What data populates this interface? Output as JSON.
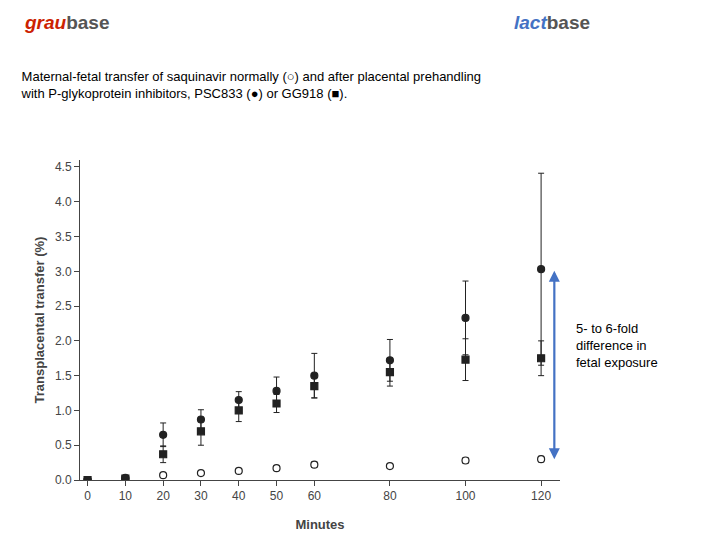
{
  "chart_data": {
    "type": "scatter",
    "title": "Maternal-fetal transfer of saquinavir normally (○) and after placental prehandling\nwith P-glykoprotein inhibitors, PSC833 (●) or GG918 (■).",
    "xlabel": "Minutes",
    "ylabel": "Transplacental transfer (%)",
    "xlim": [
      -2,
      125
    ],
    "ylim": [
      0,
      4.6
    ],
    "xticks": [
      0,
      10,
      20,
      30,
      40,
      50,
      60,
      80,
      100,
      120
    ],
    "yticks": [
      {
        "value": 0.0,
        "label": "0.0"
      },
      0.5,
      {
        "value": 1.0,
        "label": "1.0"
      },
      1.5,
      {
        "value": 2.0,
        "label": "2.0"
      },
      2.5,
      {
        "value": 3.0,
        "label": "3.0"
      },
      3.5,
      {
        "value": 4.0,
        "label": "4.0"
      },
      4.5
    ],
    "grid": false,
    "series": [
      {
        "color": "#222222",
        "marker": "open_circle",
        "x": [
          0,
          10,
          20,
          30,
          40,
          50,
          60,
          80,
          100,
          120
        ],
        "values": [
          0,
          0.02,
          0.07,
          0.1,
          0.13,
          0.17,
          0.22,
          0.2,
          0.28,
          0.3
        ],
        "errors": [
          0,
          0.01,
          0.02,
          0.02,
          0.02,
          0.03,
          0.04,
          0.03,
          0.04,
          0.04
        ]
      },
      {
        "color": "#222222",
        "marker": "circle",
        "x": [
          0,
          10,
          20,
          30,
          40,
          50,
          60,
          80,
          100,
          120
        ],
        "values": [
          0,
          0.03,
          0.65,
          0.87,
          1.15,
          1.28,
          1.5,
          1.72,
          2.33,
          3.03
        ],
        "errors": [
          0,
          0.02,
          0.17,
          0.14,
          0.12,
          0.2,
          0.32,
          0.3,
          0.53,
          1.38
        ]
      },
      {
        "color": "#222222",
        "marker": "square",
        "x": [
          0,
          10,
          20,
          30,
          40,
          50,
          60,
          80,
          100,
          120
        ],
        "values": [
          0,
          0.02,
          0.37,
          0.7,
          1.0,
          1.1,
          1.35,
          1.55,
          1.73,
          1.75
        ],
        "errors": [
          0,
          0.01,
          0.12,
          0.2,
          0.16,
          0.13,
          0.17,
          0.2,
          0.3,
          0.25
        ]
      }
    ],
    "arrow": {
      "x": 123.5,
      "top": 3.03,
      "bottom": 0.3,
      "color": "#4472C4"
    },
    "annotations": [
      "5- to 6-fold\ndifference in\nfetal exposure"
    ],
    "logos": [
      [
        {
          "text": "grau",
          "color": "#cc2200"
        },
        {
          "text": "base",
          "color": "#555555"
        }
      ],
      [
        {
          "text": "lact",
          "color": "#4472C4"
        },
        {
          "text": "base",
          "color": "#555555"
        }
      ]
    ]
  }
}
